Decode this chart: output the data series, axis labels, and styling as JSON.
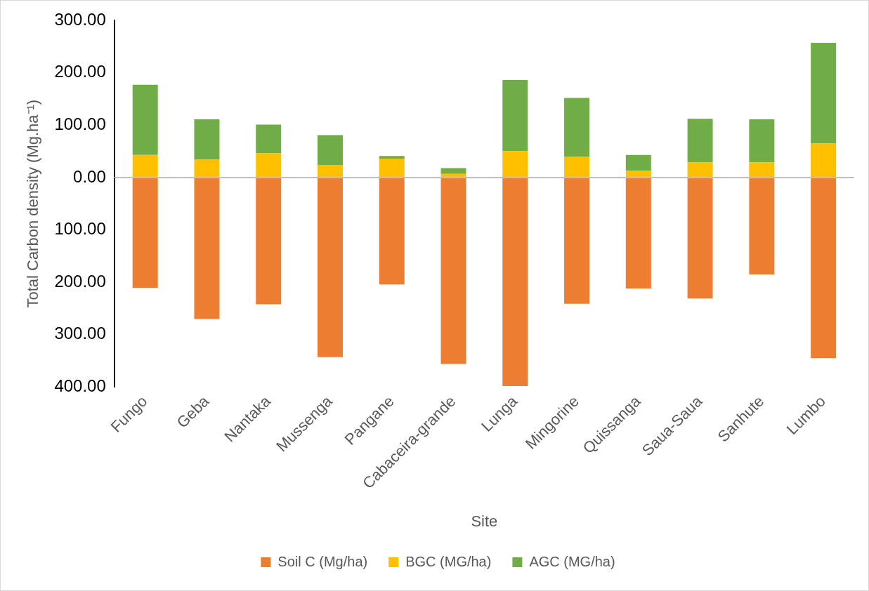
{
  "chart_data": {
    "type": "bar",
    "stacked": true,
    "xlabel": "Site",
    "ylabel": "Total Carbon density (Mg.ha⁻¹)",
    "categories": [
      "Fungo",
      "Geba",
      "Nantaka",
      "Mussenga",
      "Pangane",
      "Cabaceira-grande",
      "Lunga",
      "Mingorine",
      "Quissanga",
      "Saua-Saua",
      "Sanhute",
      "Lumbo"
    ],
    "series": [
      {
        "name": "Soil C (Mg/ha)",
        "color": "#ed7d31",
        "values": [
          -211,
          -270,
          -242,
          -343,
          -204,
          -356,
          -398,
          -241,
          -212,
          -231,
          -185,
          -345
        ]
      },
      {
        "name": "BGC (MG/ha)",
        "color": "#ffc000",
        "values": [
          43,
          34,
          46,
          24,
          36,
          7,
          50,
          40,
          13,
          29,
          29,
          65
        ]
      },
      {
        "name": "AGC (MG/ha)",
        "color": "#70ad47",
        "values": [
          134,
          77,
          55,
          57,
          5,
          11,
          136,
          112,
          30,
          83,
          82,
          192
        ]
      }
    ],
    "ylim": [
      -400,
      300
    ],
    "yticks": [
      {
        "value": 300,
        "label": "300.00"
      },
      {
        "value": 200,
        "label": "200.00"
      },
      {
        "value": 100,
        "label": "100.00"
      },
      {
        "value": 0,
        "label": "0.00"
      },
      {
        "value": -100,
        "label": "100.00"
      },
      {
        "value": -200,
        "label": "200.00"
      },
      {
        "value": -300,
        "label": "300.00"
      },
      {
        "value": -400,
        "label": "400.00"
      }
    ],
    "ref_lines": [
      {
        "axis": "y",
        "value": 0,
        "color": "#bfbfbf"
      }
    ],
    "grid": false,
    "legend": "bottom"
  }
}
